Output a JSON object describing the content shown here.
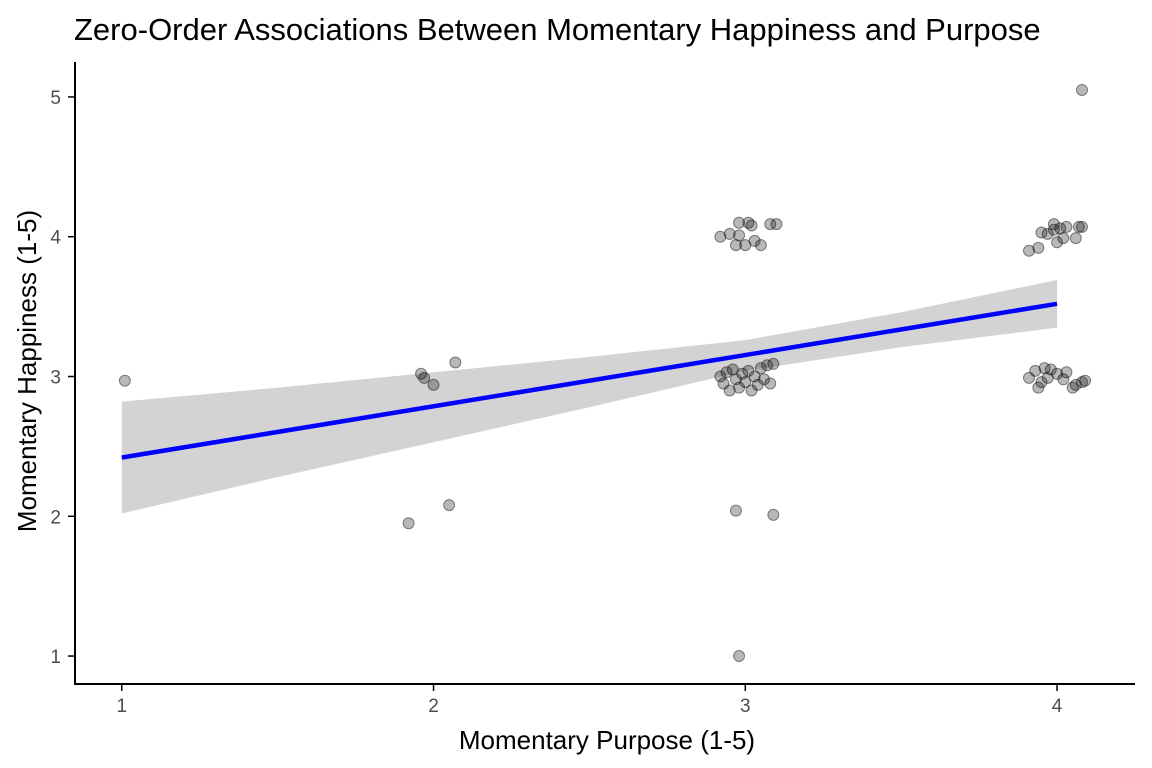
{
  "chart_data": {
    "type": "scatter",
    "title": "Zero-Order Associations Between Momentary Happiness and Purpose",
    "xlabel": "Momentary Purpose (1-5)",
    "ylabel": "Momentary Happiness (1-5)",
    "xlim": [
      0.85,
      4.25
    ],
    "ylim": [
      0.8,
      5.25
    ],
    "xticks": [
      1,
      2,
      3,
      4
    ],
    "yticks": [
      1,
      2,
      3,
      4,
      5
    ],
    "grid": false,
    "legend": "none",
    "colors": {
      "points": "#000000",
      "fit_line": "#0000ff",
      "confidence_band": "#d3d3d3",
      "axis": "#000000",
      "tick_text": "#4d4d4d"
    },
    "points": [
      {
        "x": 1.01,
        "y": 2.97
      },
      {
        "x": 1.96,
        "y": 3.02
      },
      {
        "x": 1.97,
        "y": 2.99
      },
      {
        "x": 2.0,
        "y": 2.94
      },
      {
        "x": 2.07,
        "y": 3.1
      },
      {
        "x": 1.92,
        "y": 1.95
      },
      {
        "x": 2.05,
        "y": 2.08
      },
      {
        "x": 2.92,
        "y": 4.0
      },
      {
        "x": 2.95,
        "y": 4.02
      },
      {
        "x": 2.97,
        "y": 3.94
      },
      {
        "x": 2.98,
        "y": 4.01
      },
      {
        "x": 2.98,
        "y": 4.1
      },
      {
        "x": 3.0,
        "y": 3.94
      },
      {
        "x": 3.01,
        "y": 4.1
      },
      {
        "x": 3.02,
        "y": 4.08
      },
      {
        "x": 3.03,
        "y": 3.97
      },
      {
        "x": 3.05,
        "y": 3.94
      },
      {
        "x": 3.08,
        "y": 4.09
      },
      {
        "x": 3.1,
        "y": 4.09
      },
      {
        "x": 2.92,
        "y": 3.0
      },
      {
        "x": 2.93,
        "y": 2.95
      },
      {
        "x": 2.94,
        "y": 3.03
      },
      {
        "x": 2.95,
        "y": 2.9
      },
      {
        "x": 2.96,
        "y": 3.05
      },
      {
        "x": 2.97,
        "y": 2.98
      },
      {
        "x": 2.98,
        "y": 2.92
      },
      {
        "x": 2.99,
        "y": 3.02
      },
      {
        "x": 3.0,
        "y": 2.96
      },
      {
        "x": 3.01,
        "y": 3.04
      },
      {
        "x": 3.02,
        "y": 2.9
      },
      {
        "x": 3.03,
        "y": 3.0
      },
      {
        "x": 3.04,
        "y": 2.94
      },
      {
        "x": 3.05,
        "y": 3.06
      },
      {
        "x": 3.06,
        "y": 2.98
      },
      {
        "x": 3.07,
        "y": 3.08
      },
      {
        "x": 3.08,
        "y": 2.95
      },
      {
        "x": 3.09,
        "y": 3.09
      },
      {
        "x": 2.97,
        "y": 2.04
      },
      {
        "x": 3.09,
        "y": 2.01
      },
      {
        "x": 2.98,
        "y": 1.0
      },
      {
        "x": 3.91,
        "y": 3.9
      },
      {
        "x": 3.94,
        "y": 3.92
      },
      {
        "x": 3.95,
        "y": 4.03
      },
      {
        "x": 3.97,
        "y": 4.02
      },
      {
        "x": 3.99,
        "y": 4.05
      },
      {
        "x": 3.99,
        "y": 4.09
      },
      {
        "x": 4.0,
        "y": 3.96
      },
      {
        "x": 4.01,
        "y": 4.06
      },
      {
        "x": 4.02,
        "y": 3.99
      },
      {
        "x": 4.03,
        "y": 4.07
      },
      {
        "x": 4.06,
        "y": 3.99
      },
      {
        "x": 4.07,
        "y": 4.07
      },
      {
        "x": 4.08,
        "y": 4.07
      },
      {
        "x": 4.08,
        "y": 5.05
      },
      {
        "x": 3.91,
        "y": 2.99
      },
      {
        "x": 3.93,
        "y": 3.04
      },
      {
        "x": 3.94,
        "y": 2.92
      },
      {
        "x": 3.95,
        "y": 2.96
      },
      {
        "x": 3.96,
        "y": 3.06
      },
      {
        "x": 3.97,
        "y": 2.99
      },
      {
        "x": 3.98,
        "y": 3.05
      },
      {
        "x": 4.0,
        "y": 3.02
      },
      {
        "x": 4.02,
        "y": 2.98
      },
      {
        "x": 4.03,
        "y": 3.03
      },
      {
        "x": 4.05,
        "y": 2.92
      },
      {
        "x": 4.06,
        "y": 2.94
      },
      {
        "x": 4.08,
        "y": 2.96
      },
      {
        "x": 4.09,
        "y": 2.97
      }
    ],
    "fit_line": {
      "x": [
        1,
        4
      ],
      "y": [
        2.42,
        3.52
      ]
    },
    "confidence_band": {
      "x": [
        1,
        1.5,
        2,
        2.5,
        3,
        3.5,
        4
      ],
      "lower": [
        2.02,
        2.28,
        2.53,
        2.78,
        3.04,
        3.21,
        3.35
      ],
      "upper": [
        2.82,
        2.92,
        3.03,
        3.14,
        3.26,
        3.46,
        3.69
      ]
    }
  }
}
